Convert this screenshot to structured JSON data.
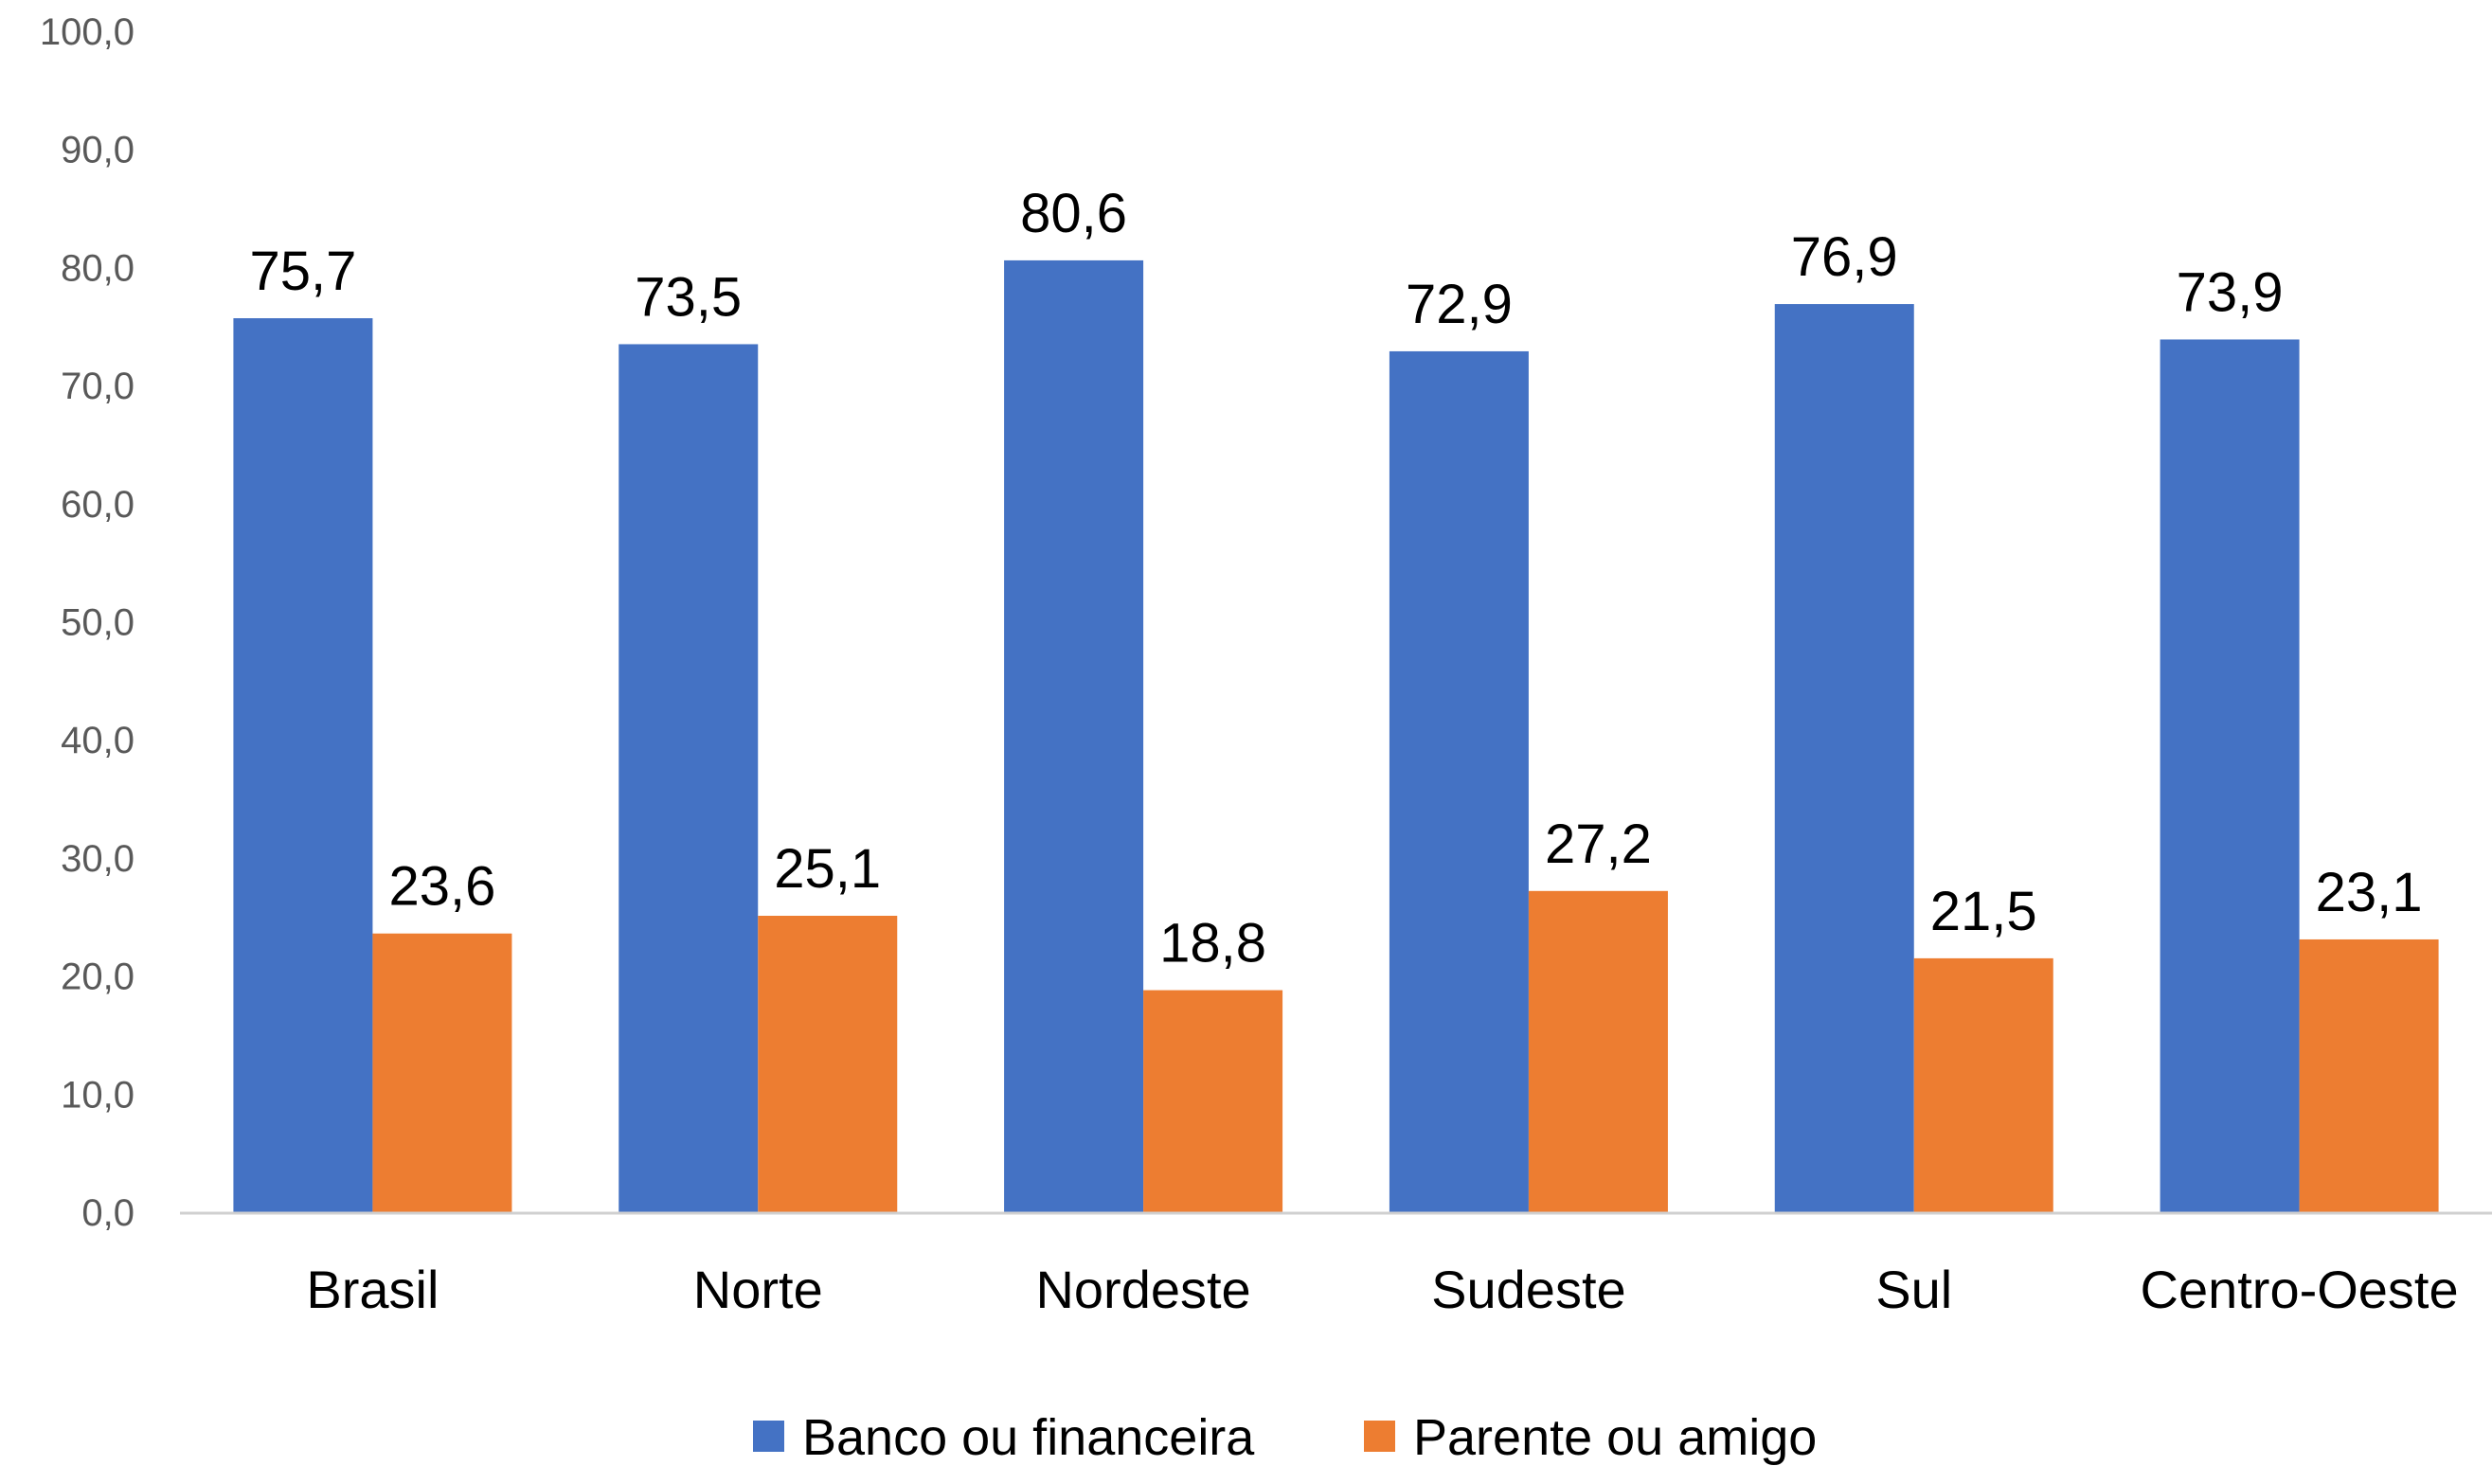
{
  "chart_data": {
    "type": "bar",
    "title": "",
    "xlabel": "",
    "ylabel": "",
    "categories": [
      "Brasil",
      "Norte",
      "Nordeste",
      "Sudeste",
      "Sul",
      "Centro-Oeste"
    ],
    "series": [
      {
        "name": "Banco ou financeira",
        "color": "#4472C4",
        "values": [
          75.7,
          73.5,
          80.6,
          72.9,
          76.9,
          73.9
        ],
        "labels": [
          "75,7",
          "73,5",
          "80,6",
          "72,9",
          "76,9",
          "73,9"
        ]
      },
      {
        "name": "Parente ou amigo",
        "color": "#ED7D31",
        "values": [
          23.6,
          25.1,
          18.8,
          27.2,
          21.5,
          23.1
        ],
        "labels": [
          "23,6",
          "25,1",
          "18,8",
          "27,2",
          "21,5",
          "23,1"
        ]
      }
    ],
    "ylim": [
      0,
      100
    ],
    "yticks": [
      0,
      10,
      20,
      30,
      40,
      50,
      60,
      70,
      80,
      90,
      100
    ],
    "ytick_labels": [
      "0,0",
      "10,0",
      "20,0",
      "30,0",
      "40,0",
      "50,0",
      "60,0",
      "70,0",
      "80,0",
      "90,0",
      "100,0"
    ],
    "grid": false,
    "legend_position": "bottom-center"
  }
}
